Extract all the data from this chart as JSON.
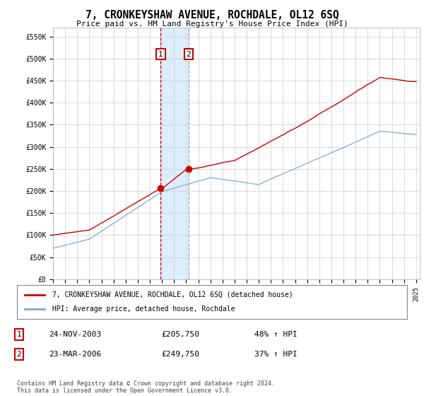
{
  "title": "7, CRONKEYSHAW AVENUE, ROCHDALE, OL12 6SQ",
  "subtitle": "Price paid vs. HM Land Registry's House Price Index (HPI)",
  "ylabel_ticks": [
    "£0",
    "£50K",
    "£100K",
    "£150K",
    "£200K",
    "£250K",
    "£300K",
    "£350K",
    "£400K",
    "£450K",
    "£500K",
    "£550K"
  ],
  "ytick_values": [
    0,
    50000,
    100000,
    150000,
    200000,
    250000,
    300000,
    350000,
    400000,
    450000,
    500000,
    550000
  ],
  "ylim": [
    0,
    570000
  ],
  "x_start_year": 1995,
  "x_end_year": 2025,
  "sale1_year": 2003.9,
  "sale1_price": 205750,
  "sale1_label_price": 480000,
  "sale1_date": "24-NOV-2003",
  "sale1_hpi_pct": "48%",
  "sale2_year": 2006.2,
  "sale2_price": 249750,
  "sale2_label_price": 480000,
  "sale2_date": "23-MAR-2006",
  "sale2_hpi_pct": "37%",
  "legend_label_red": "7, CRONKEYSHAW AVENUE, ROCHDALE, OL12 6SQ (detached house)",
  "legend_label_blue": "HPI: Average price, detached house, Rochdale",
  "footnote": "Contains HM Land Registry data © Crown copyright and database right 2024.\nThis data is licensed under the Open Government Licence v3.0.",
  "red_color": "#cc0000",
  "blue_color": "#7faacc",
  "bg_color": "#ffffff",
  "grid_color": "#cccccc",
  "highlight_color": "#ddeeff"
}
